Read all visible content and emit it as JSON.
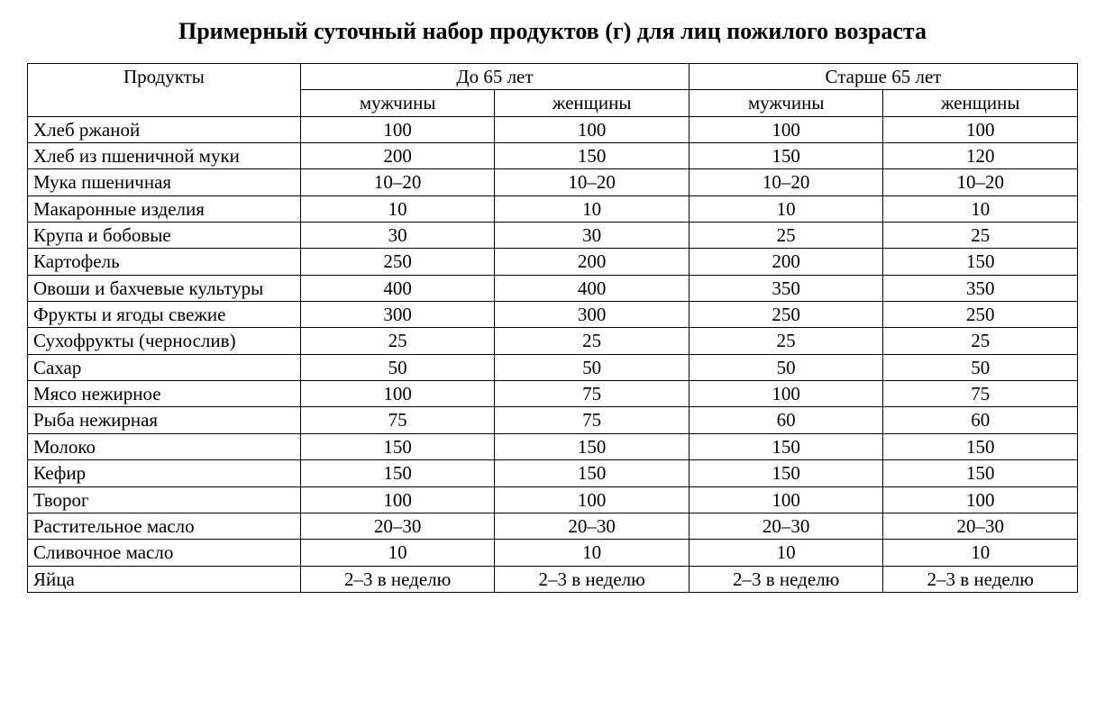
{
  "title": "Примерный суточный набор продуктов (г) для лиц пожилого возраста",
  "table": {
    "productsHeader": "Продукты",
    "group1": "До 65 лет",
    "group2": "Старше 65 лет",
    "sub_m": "мужчины",
    "sub_w": "женщины",
    "rows": [
      {
        "name": "Хлеб ржаной",
        "v": [
          "100",
          "100",
          "100",
          "100"
        ]
      },
      {
        "name": "Хлеб из пшеничной муки",
        "v": [
          "200",
          "150",
          "150",
          "120"
        ]
      },
      {
        "name": "Мука пшеничная",
        "v": [
          "10–20",
          "10–20",
          "10–20",
          "10–20"
        ]
      },
      {
        "name": "Макаронные изделия",
        "v": [
          "10",
          "10",
          "10",
          "10"
        ]
      },
      {
        "name": "Крупа и бобовые",
        "v": [
          "30",
          "30",
          "25",
          "25"
        ]
      },
      {
        "name": "Картофель",
        "v": [
          "250",
          "200",
          "200",
          "150"
        ]
      },
      {
        "name": "Овоши и бахчевые культуры",
        "v": [
          "400",
          "400",
          "350",
          "350"
        ]
      },
      {
        "name": "Фрукты и ягоды свежие",
        "v": [
          "300",
          "300",
          "250",
          "250"
        ]
      },
      {
        "name": "Сухофрукты (чернослив)",
        "v": [
          "25",
          "25",
          "25",
          "25"
        ]
      },
      {
        "name": "Сахар",
        "v": [
          "50",
          "50",
          "50",
          "50"
        ]
      },
      {
        "name": "Мясо нежирное",
        "v": [
          "100",
          "75",
          "100",
          "75"
        ]
      },
      {
        "name": "Рыба нежирная",
        "v": [
          "75",
          "75",
          "60",
          "60"
        ]
      },
      {
        "name": "Молоко",
        "v": [
          "150",
          "150",
          "150",
          "150"
        ]
      },
      {
        "name": "Кефир",
        "v": [
          "150",
          "150",
          "150",
          "150"
        ]
      },
      {
        "name": "Творог",
        "v": [
          "100",
          "100",
          "100",
          "100"
        ]
      },
      {
        "name": "Растительное масло",
        "v": [
          "20–30",
          "20–30",
          "20–30",
          "20–30"
        ]
      },
      {
        "name": "Сливочное масло",
        "v": [
          "10",
          "10",
          "10",
          "10"
        ]
      },
      {
        "name": "Яйца",
        "v": [
          "2–3 в неделю",
          "2–3 в неделю",
          "2–3 в неделю",
          "2–3 в неделю"
        ]
      }
    ]
  }
}
